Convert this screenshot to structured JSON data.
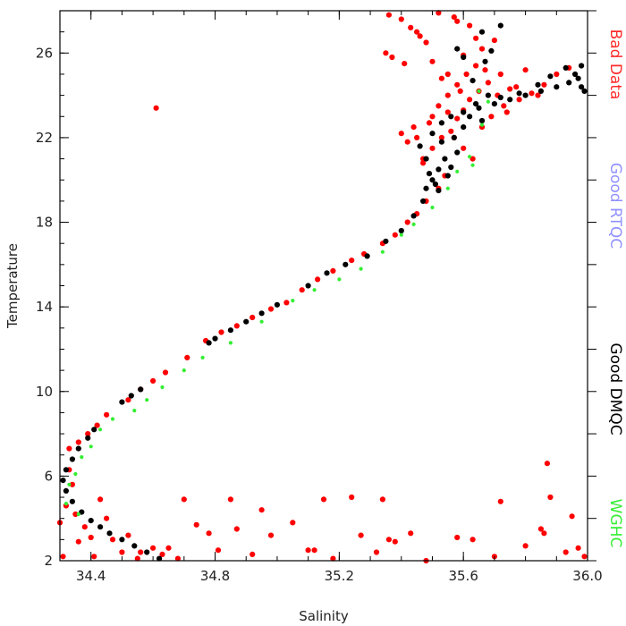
{
  "chart_data": {
    "type": "scatter",
    "xlabel": "Salinity",
    "ylabel": "Temperature",
    "xlim": [
      34.3,
      36.0
    ],
    "ylim": [
      2,
      28
    ],
    "xticks": [
      34.4,
      34.8,
      35.2,
      35.6,
      36.0
    ],
    "xtick_labels": [
      "34.4",
      "34.8",
      "35.2",
      "35.6",
      "36.0"
    ],
    "yticks": [
      2,
      6,
      10,
      14,
      18,
      22,
      26
    ],
    "ytick_labels": [
      "2",
      "6",
      "10",
      "14",
      "18",
      "22",
      "26"
    ],
    "grid": false,
    "legend_placement": "right",
    "legend": [
      {
        "label": "Bad Data",
        "color": "#ff2a2a"
      },
      {
        "label": "Good RTQC",
        "color": "#9090ff"
      },
      {
        "label": "Good DMQC",
        "color": "#000000"
      },
      {
        "label": "WGHC",
        "color": "#33ee33"
      }
    ],
    "series": [
      {
        "color": "#ff0000",
        "points": [
          [
            34.32,
            4.6
          ],
          [
            34.34,
            5.6
          ],
          [
            34.33,
            6.3
          ],
          [
            34.35,
            4.2
          ],
          [
            34.4,
            3.1
          ],
          [
            34.47,
            3.0
          ],
          [
            34.5,
            2.4
          ],
          [
            34.55,
            2.1
          ],
          [
            34.6,
            2.6
          ],
          [
            34.45,
            4.0
          ],
          [
            34.43,
            4.9
          ],
          [
            34.38,
            3.6
          ],
          [
            34.36,
            2.9
          ],
          [
            34.31,
            2.2
          ],
          [
            34.3,
            3.8
          ],
          [
            34.41,
            2.2
          ],
          [
            34.52,
            3.2
          ],
          [
            34.56,
            2.4
          ],
          [
            34.63,
            2.3
          ],
          [
            34.65,
            2.6
          ],
          [
            34.68,
            2.1
          ],
          [
            34.7,
            4.9
          ],
          [
            34.74,
            3.7
          ],
          [
            34.78,
            3.3
          ],
          [
            34.81,
            2.5
          ],
          [
            34.85,
            4.9
          ],
          [
            34.87,
            3.5
          ],
          [
            34.92,
            2.3
          ],
          [
            34.95,
            4.4
          ],
          [
            34.98,
            3.2
          ],
          [
            35.05,
            3.8
          ],
          [
            35.1,
            2.5
          ],
          [
            35.12,
            2.5
          ],
          [
            35.15,
            4.9
          ],
          [
            35.18,
            2.1
          ],
          [
            35.24,
            5.0
          ],
          [
            35.27,
            3.2
          ],
          [
            35.32,
            2.4
          ],
          [
            35.34,
            4.9
          ],
          [
            35.36,
            3.0
          ],
          [
            35.38,
            2.9
          ],
          [
            35.43,
            3.3
          ],
          [
            35.48,
            2.0
          ],
          [
            35.58,
            3.1
          ],
          [
            35.63,
            3.0
          ],
          [
            35.72,
            4.8
          ],
          [
            35.8,
            2.7
          ],
          [
            35.85,
            3.5
          ],
          [
            35.87,
            6.6
          ],
          [
            35.88,
            5.0
          ],
          [
            35.93,
            2.4
          ],
          [
            35.95,
            4.1
          ],
          [
            35.97,
            2.6
          ],
          [
            35.99,
            2.2
          ],
          [
            35.86,
            3.3
          ],
          [
            35.7,
            2.2
          ],
          [
            34.61,
            23.4
          ],
          [
            34.33,
            7.3
          ],
          [
            34.36,
            7.6
          ],
          [
            34.39,
            8.0
          ],
          [
            34.42,
            8.4
          ],
          [
            34.45,
            8.9
          ],
          [
            34.52,
            9.6
          ],
          [
            34.56,
            10.1
          ],
          [
            34.6,
            10.5
          ],
          [
            34.64,
            10.9
          ],
          [
            34.71,
            11.6
          ],
          [
            34.77,
            12.4
          ],
          [
            34.82,
            12.8
          ],
          [
            34.87,
            13.1
          ],
          [
            34.92,
            13.5
          ],
          [
            34.98,
            13.9
          ],
          [
            35.03,
            14.2
          ],
          [
            35.08,
            14.8
          ],
          [
            35.13,
            15.3
          ],
          [
            35.18,
            15.7
          ],
          [
            35.24,
            16.2
          ],
          [
            35.28,
            16.5
          ],
          [
            35.34,
            17.0
          ],
          [
            35.38,
            17.4
          ],
          [
            35.42,
            18.0
          ],
          [
            35.45,
            18.4
          ],
          [
            35.48,
            19.0
          ],
          [
            35.52,
            19.6
          ],
          [
            35.54,
            20.2
          ],
          [
            35.47,
            20.8
          ],
          [
            35.5,
            21.5
          ],
          [
            35.53,
            22.0
          ],
          [
            35.56,
            22.3
          ],
          [
            35.58,
            22.9
          ],
          [
            35.6,
            23.3
          ],
          [
            35.62,
            23.8
          ],
          [
            35.65,
            24.2
          ],
          [
            35.68,
            24.6
          ],
          [
            35.72,
            25.0
          ],
          [
            35.75,
            24.3
          ],
          [
            35.78,
            23.8
          ],
          [
            35.82,
            24.1
          ],
          [
            35.86,
            24.5
          ],
          [
            35.9,
            25.0
          ],
          [
            35.94,
            25.3
          ],
          [
            35.47,
            21.0
          ],
          [
            35.45,
            22.0
          ],
          [
            35.42,
            21.8
          ],
          [
            35.4,
            22.2
          ],
          [
            35.5,
            23.0
          ],
          [
            35.52,
            23.5
          ],
          [
            35.55,
            24.0
          ],
          [
            35.58,
            24.5
          ],
          [
            35.61,
            25.0
          ],
          [
            35.64,
            25.4
          ],
          [
            35.66,
            26.2
          ],
          [
            35.7,
            26.6
          ],
          [
            35.55,
            23.2
          ],
          [
            35.57,
            22.0
          ],
          [
            35.49,
            22.7
          ],
          [
            35.44,
            22.5
          ],
          [
            35.6,
            21.5
          ],
          [
            35.63,
            21.0
          ],
          [
            35.66,
            22.5
          ],
          [
            35.69,
            23.0
          ],
          [
            35.73,
            23.5
          ],
          [
            35.36,
            27.8
          ],
          [
            35.4,
            27.6
          ],
          [
            35.43,
            27.2
          ],
          [
            35.45,
            27.0
          ],
          [
            35.48,
            26.5
          ],
          [
            35.52,
            27.9
          ],
          [
            35.58,
            27.5
          ],
          [
            35.62,
            27.3
          ],
          [
            35.35,
            26.0
          ],
          [
            35.37,
            25.8
          ],
          [
            35.41,
            25.5
          ],
          [
            35.55,
            25.0
          ],
          [
            35.6,
            25.9
          ],
          [
            35.64,
            26.7
          ],
          [
            35.57,
            27.7
          ],
          [
            35.46,
            26.8
          ],
          [
            35.5,
            25.6
          ],
          [
            35.53,
            24.8
          ],
          [
            35.59,
            24.2
          ],
          [
            35.67,
            25.2
          ],
          [
            35.71,
            24.0
          ],
          [
            35.74,
            23.2
          ],
          [
            35.77,
            24.4
          ],
          [
            35.8,
            25.2
          ],
          [
            35.84,
            24.0
          ]
        ]
      },
      {
        "color": "#000000",
        "points": [
          [
            34.62,
            2.1
          ],
          [
            34.58,
            2.4
          ],
          [
            34.54,
            2.7
          ],
          [
            34.5,
            3.0
          ],
          [
            34.46,
            3.3
          ],
          [
            34.43,
            3.6
          ],
          [
            34.4,
            3.9
          ],
          [
            34.37,
            4.3
          ],
          [
            34.34,
            4.8
          ],
          [
            34.32,
            5.3
          ],
          [
            34.31,
            5.8
          ],
          [
            34.32,
            6.3
          ],
          [
            34.34,
            6.8
          ],
          [
            34.36,
            7.3
          ],
          [
            34.39,
            7.8
          ],
          [
            34.41,
            8.2
          ],
          [
            34.5,
            9.5
          ],
          [
            34.53,
            9.8
          ],
          [
            34.56,
            10.1
          ],
          [
            34.78,
            12.3
          ],
          [
            34.8,
            12.5
          ],
          [
            34.85,
            12.9
          ],
          [
            34.9,
            13.3
          ],
          [
            34.95,
            13.7
          ],
          [
            35.0,
            14.1
          ],
          [
            35.1,
            15.0
          ],
          [
            35.16,
            15.6
          ],
          [
            35.22,
            16.0
          ],
          [
            35.29,
            16.4
          ],
          [
            35.35,
            17.1
          ],
          [
            35.4,
            17.6
          ],
          [
            35.44,
            18.3
          ],
          [
            35.47,
            19.0
          ],
          [
            35.48,
            19.6
          ],
          [
            35.5,
            20.0
          ],
          [
            35.52,
            20.5
          ],
          [
            35.48,
            21.0
          ],
          [
            35.46,
            21.6
          ],
          [
            35.5,
            22.2
          ],
          [
            35.53,
            22.7
          ],
          [
            35.56,
            23.0
          ],
          [
            35.6,
            23.2
          ],
          [
            35.65,
            23.4
          ],
          [
            35.7,
            23.6
          ],
          [
            35.75,
            23.8
          ],
          [
            35.8,
            24.0
          ],
          [
            35.85,
            24.2
          ],
          [
            35.9,
            24.4
          ],
          [
            35.94,
            24.6
          ],
          [
            35.97,
            24.8
          ],
          [
            35.98,
            24.4
          ],
          [
            35.99,
            24.2
          ],
          [
            35.96,
            25.0
          ],
          [
            35.98,
            25.4
          ],
          [
            35.93,
            25.3
          ],
          [
            35.88,
            24.9
          ],
          [
            35.84,
            24.5
          ],
          [
            35.78,
            24.1
          ],
          [
            35.72,
            23.9
          ],
          [
            35.54,
            21.0
          ],
          [
            35.56,
            20.6
          ],
          [
            35.58,
            21.3
          ],
          [
            35.53,
            21.8
          ],
          [
            35.49,
            20.3
          ],
          [
            35.51,
            19.8
          ],
          [
            35.55,
            20.2
          ],
          [
            35.52,
            19.5
          ],
          [
            35.57,
            22.0
          ],
          [
            35.6,
            22.5
          ],
          [
            35.62,
            23.0
          ],
          [
            35.66,
            22.8
          ],
          [
            35.64,
            23.6
          ],
          [
            35.68,
            24.0
          ],
          [
            35.72,
            27.3
          ],
          [
            35.6,
            25.8
          ],
          [
            35.58,
            26.2
          ],
          [
            35.66,
            27.0
          ],
          [
            35.63,
            24.7
          ],
          [
            35.67,
            25.6
          ],
          [
            35.69,
            26.1
          ]
        ]
      },
      {
        "color": "#33ee33",
        "points": [
          [
            34.33,
            5.6
          ],
          [
            34.35,
            6.1
          ],
          [
            34.37,
            6.9
          ],
          [
            34.4,
            7.4
          ],
          [
            34.43,
            8.2
          ],
          [
            34.47,
            8.7
          ],
          [
            34.54,
            9.1
          ],
          [
            34.58,
            9.6
          ],
          [
            34.63,
            10.2
          ],
          [
            34.7,
            11.0
          ],
          [
            34.76,
            11.6
          ],
          [
            34.85,
            12.3
          ],
          [
            34.95,
            13.3
          ],
          [
            35.05,
            14.3
          ],
          [
            35.12,
            14.8
          ],
          [
            35.2,
            15.3
          ],
          [
            35.27,
            15.8
          ],
          [
            35.34,
            16.6
          ],
          [
            35.4,
            17.4
          ],
          [
            35.44,
            17.9
          ],
          [
            35.5,
            18.7
          ],
          [
            35.55,
            19.6
          ],
          [
            35.58,
            20.4
          ],
          [
            35.62,
            21.1
          ],
          [
            35.66,
            22.6
          ],
          [
            35.68,
            23.7
          ],
          [
            35.65,
            24.2
          ],
          [
            34.36,
            4.2
          ],
          [
            34.32,
            4.7
          ],
          [
            35.63,
            20.7
          ]
        ]
      }
    ]
  }
}
